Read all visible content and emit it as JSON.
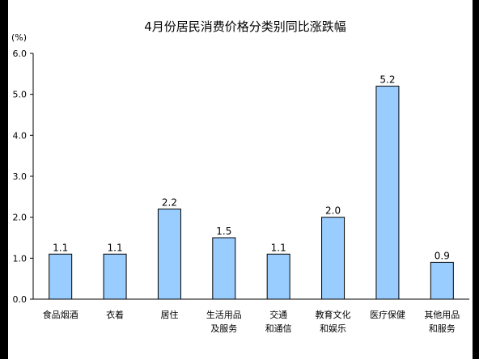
{
  "chart_data": {
    "type": "bar",
    "title": "4月份居民消费价格分类别同比涨跌幅",
    "unit_label": "(%)",
    "categories": [
      [
        "食品烟酒"
      ],
      [
        "衣着"
      ],
      [
        "居住"
      ],
      [
        "生活用品",
        "及服务"
      ],
      [
        "交通",
        "和通信"
      ],
      [
        "教育文化",
        "和娱乐"
      ],
      [
        "医疗保健"
      ],
      [
        "其他用品",
        "和服务"
      ]
    ],
    "values": [
      1.1,
      1.1,
      2.2,
      1.5,
      1.1,
      2.0,
      5.2,
      0.9
    ],
    "data_labels": [
      "1.1",
      "1.1",
      "2.2",
      "1.5",
      "1.1",
      "2.0",
      "5.2",
      "0.9"
    ],
    "yticks": [
      "0.0",
      "1.0",
      "2.0",
      "3.0",
      "4.0",
      "5.0",
      "6.0"
    ],
    "ylim": [
      0,
      6
    ],
    "grid": false,
    "bar_color": "#99ccff",
    "bar_edge_color": "#000000"
  }
}
